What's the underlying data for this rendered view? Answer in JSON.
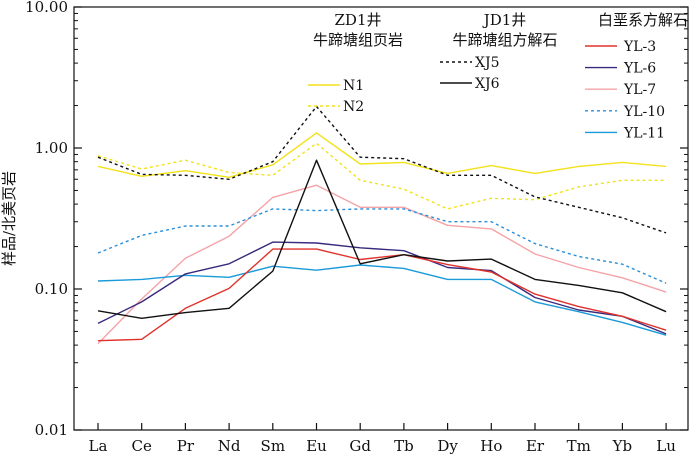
{
  "chart_data": {
    "type": "line",
    "yscale": "log",
    "ylim": [
      0.01,
      10
    ],
    "ytick_labels": [
      "0.01",
      "0.10",
      "1.00",
      "10.00"
    ],
    "ylabel": "样品/北美页岩",
    "xlabel": "",
    "categories": [
      "La",
      "Ce",
      "Pr",
      "Nd",
      "Sm",
      "Eu",
      "Gd",
      "Tb",
      "Dy",
      "Ho",
      "Er",
      "Tm",
      "Yb",
      "Lu"
    ],
    "legend": {
      "groups": [
        {
          "title1": "ZD1井",
          "title2": "牛蹄塘组页岩",
          "series": [
            "N1",
            "N2"
          ]
        },
        {
          "title1": "JD1井",
          "title2": "牛蹄塘组方解石",
          "series": [
            "XJ5",
            "XJ6"
          ]
        },
        {
          "title1": "白垩系方解石",
          "title2": "",
          "series": [
            "YL-3",
            "YL-6",
            "YL-7",
            "YL-10",
            "YL-11"
          ]
        }
      ]
    },
    "series": [
      {
        "name": "N1",
        "color": "#f2e21a",
        "dash": "solid",
        "values": [
          0.74,
          0.63,
          0.69,
          0.62,
          0.76,
          1.28,
          0.77,
          0.79,
          0.66,
          0.75,
          0.66,
          0.74,
          0.79,
          0.74
        ]
      },
      {
        "name": "N2",
        "color": "#f2e21a",
        "dash": "dotted",
        "values": [
          0.88,
          0.71,
          0.82,
          0.67,
          0.64,
          1.08,
          0.59,
          0.51,
          0.37,
          0.44,
          0.43,
          0.53,
          0.59,
          0.59
        ]
      },
      {
        "name": "XJ5",
        "color": "#111111",
        "dash": "dotted",
        "values": [
          0.86,
          0.65,
          0.64,
          0.6,
          0.8,
          1.97,
          0.86,
          0.84,
          0.64,
          0.64,
          0.45,
          0.38,
          0.32,
          0.25
        ]
      },
      {
        "name": "XJ6",
        "color": "#111111",
        "dash": "solid",
        "values": [
          0.07,
          0.062,
          0.068,
          0.073,
          0.134,
          0.82,
          0.151,
          0.175,
          0.158,
          0.163,
          0.117,
          0.106,
          0.094,
          0.069
        ]
      },
      {
        "name": "YL-3",
        "color": "#e0322b",
        "dash": "solid",
        "values": [
          0.043,
          0.044,
          0.073,
          0.101,
          0.192,
          0.192,
          0.162,
          0.175,
          0.149,
          0.132,
          0.092,
          0.075,
          0.064,
          0.051
        ]
      },
      {
        "name": "YL-6",
        "color": "#3a2a7e",
        "dash": "solid",
        "values": [
          0.057,
          0.081,
          0.128,
          0.151,
          0.215,
          0.212,
          0.196,
          0.187,
          0.142,
          0.135,
          0.087,
          0.071,
          0.064,
          0.048
        ]
      },
      {
        "name": "YL-7",
        "color": "#f4a3a7",
        "dash": "solid",
        "values": [
          0.041,
          0.085,
          0.165,
          0.237,
          0.446,
          0.545,
          0.38,
          0.38,
          0.283,
          0.267,
          0.177,
          0.142,
          0.12,
          0.095
        ]
      },
      {
        "name": "YL-10",
        "color": "#2a8fd8",
        "dash": "dotted",
        "values": [
          0.18,
          0.24,
          0.28,
          0.28,
          0.37,
          0.36,
          0.37,
          0.37,
          0.3,
          0.3,
          0.21,
          0.17,
          0.15,
          0.11
        ]
      },
      {
        "name": "YL-11",
        "color": "#1a9ad8",
        "dash": "solid",
        "values": [
          0.114,
          0.117,
          0.125,
          0.121,
          0.145,
          0.136,
          0.148,
          0.14,
          0.117,
          0.117,
          0.081,
          0.069,
          0.058,
          0.047
        ]
      }
    ]
  }
}
